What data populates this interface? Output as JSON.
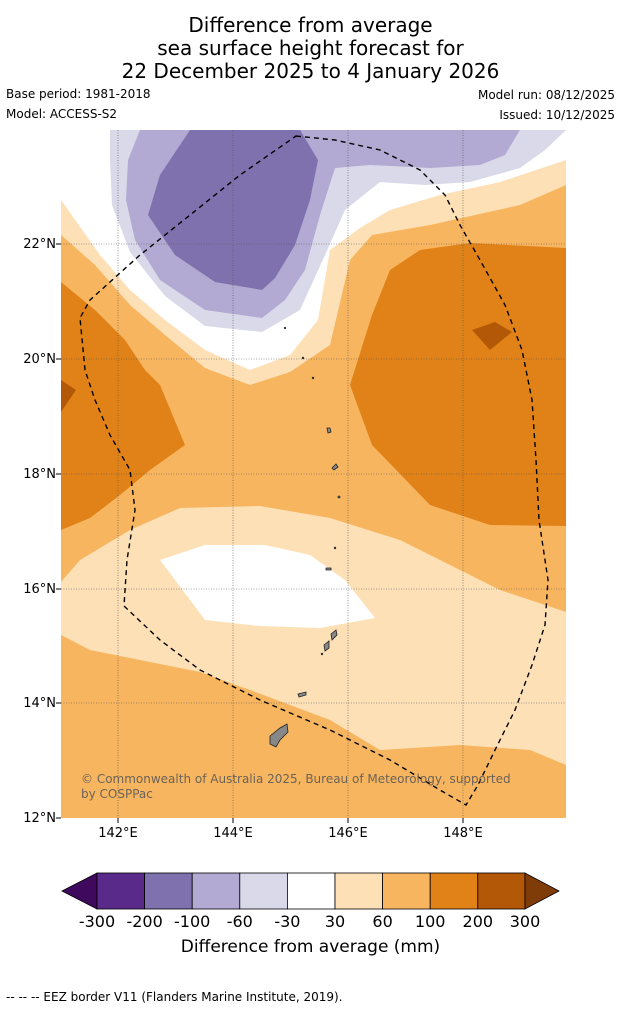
{
  "title": {
    "line1": "Difference from average",
    "line2": "sea surface height forecast for",
    "line3": "22 December 2025 to 4 January 2026"
  },
  "meta": {
    "base_period": "Base period: 1981-2018",
    "model": "Model: ACCESS-S2",
    "model_run": "Model run: 08/12/2025",
    "issued": "Issued: 10/12/2025"
  },
  "map": {
    "lat_labels": [
      "22°N",
      "20°N",
      "18°N",
      "16°N",
      "14°N",
      "12°N"
    ],
    "lon_labels": [
      "142°E",
      "144°E",
      "146°E",
      "148°E"
    ],
    "credit": "© Commonwealth of Australia 2025, Bureau of Meteorology, supported by COSPPac"
  },
  "colorbar": {
    "ticks": [
      "-300",
      "-200",
      "-100",
      "-60",
      "-30",
      "30",
      "60",
      "100",
      "200",
      "300"
    ],
    "colors": [
      "#3f0a5e",
      "#5a2a8a",
      "#7f70ae",
      "#b2aad2",
      "#d9d9ea",
      "#ffffff",
      "#fde0b6",
      "#f8b560",
      "#e08217",
      "#b35806",
      "#7f3b08"
    ],
    "title": "Difference from average (mm)"
  },
  "footer": "--  --  -- EEZ border V11 (Flanders Marine Institute, 2019)."
}
